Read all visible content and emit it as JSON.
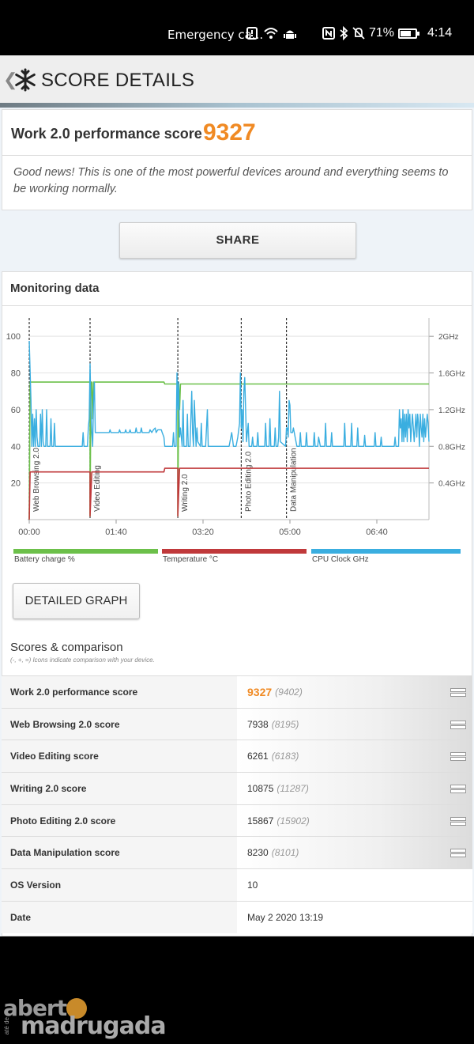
{
  "status_bar": {
    "carrier": "Emergency ca...",
    "battery_percent": "71%",
    "battery_level": 0.71,
    "time": "4:14"
  },
  "app_bar": {
    "title": "SCORE DETAILS"
  },
  "score_card": {
    "label": "Work 2.0 performance score",
    "score": "9327",
    "message": "Good news! This is one of the most powerful devices around and everything seems to be working normally."
  },
  "share_button": "SHARE",
  "monitoring": {
    "title": "Monitoring data"
  },
  "chart_data": {
    "type": "line",
    "title": "",
    "xlabel": "",
    "x_ticks": [
      "00:00",
      "01:40",
      "03:20",
      "05:00",
      "06:40"
    ],
    "y_left_ticks": [
      "100",
      "80",
      "60",
      "40",
      "20"
    ],
    "y_left_range": [
      0,
      110
    ],
    "y_right_ticks": [
      "2GHz",
      "1.6GHz",
      "1.2GHz",
      "0.8GHz",
      "0.4GHz"
    ],
    "y_right_range_ghz": [
      0,
      2.2
    ],
    "x_range_seconds": [
      0,
      460
    ],
    "grid": true,
    "legend_position": "bottom",
    "sections": [
      {
        "label": "Web Browsing 2.0",
        "t": 0
      },
      {
        "label": "Video Editing",
        "t": 70
      },
      {
        "label": "Writing 2.0",
        "t": 171
      },
      {
        "label": "Photo Editing 2.0",
        "t": 244
      },
      {
        "label": "Data Manipulation",
        "t": 296
      }
    ],
    "series": [
      {
        "name": "Battery charge %",
        "color": "#6cc04a",
        "points": [
          [
            0,
            0
          ],
          [
            1,
            75
          ],
          [
            70,
            75
          ],
          [
            70,
            2
          ],
          [
            71,
            75
          ],
          [
            72,
            75
          ],
          [
            73,
            55
          ],
          [
            74,
            75
          ],
          [
            155,
            75
          ],
          [
            156,
            74
          ],
          [
            171,
            74
          ],
          [
            171,
            2
          ],
          [
            172,
            74
          ],
          [
            173,
            60
          ],
          [
            174,
            74
          ],
          [
            460,
            74
          ]
        ]
      },
      {
        "name": "Temperature °C",
        "color": "#c0393b",
        "points": [
          [
            0,
            0
          ],
          [
            1,
            26
          ],
          [
            70,
            26
          ],
          [
            70,
            2
          ],
          [
            72,
            26
          ],
          [
            155,
            26
          ],
          [
            156,
            28
          ],
          [
            171,
            28
          ],
          [
            171,
            2
          ],
          [
            173,
            28
          ],
          [
            460,
            28
          ]
        ]
      },
      {
        "name": "CPU Clock GHz",
        "color": "#3aaee0",
        "points": [
          [
            0,
            1.95
          ],
          [
            2,
            1.3
          ],
          [
            3,
            0.8
          ],
          [
            4,
            1.15
          ],
          [
            5,
            0.8
          ],
          [
            6,
            1.1
          ],
          [
            7,
            0.8
          ],
          [
            8,
            1.2
          ],
          [
            9,
            0.9
          ],
          [
            10,
            0.8
          ],
          [
            12,
            0.8
          ],
          [
            13,
            1.15
          ],
          [
            14,
            0.8
          ],
          [
            15,
            1.2
          ],
          [
            16,
            0.85
          ],
          [
            17,
            0.8
          ],
          [
            19,
            0.8
          ],
          [
            20,
            1.2
          ],
          [
            21,
            0.8
          ],
          [
            24,
            0.8
          ],
          [
            25,
            1.1
          ],
          [
            26,
            0.8
          ],
          [
            28,
            0.8
          ],
          [
            29,
            1.05
          ],
          [
            30,
            0.8
          ],
          [
            50,
            0.8
          ],
          [
            52,
            0.8
          ],
          [
            61,
            0.8
          ],
          [
            62,
            0.95
          ],
          [
            63,
            0.8
          ],
          [
            64,
            0.8
          ],
          [
            67,
            0.8
          ],
          [
            68,
            1.0
          ],
          [
            69,
            1.1
          ],
          [
            70,
            1.7
          ],
          [
            71,
            1.2
          ],
          [
            72,
            0.95
          ],
          [
            73,
            0.8
          ],
          [
            74,
            1.3
          ],
          [
            75,
            1.5
          ],
          [
            76,
            0.95
          ],
          [
            78,
            0.95
          ],
          [
            82,
            0.95
          ],
          [
            83,
            0.95
          ],
          [
            92,
            0.95
          ],
          [
            93,
            0.98
          ],
          [
            94,
            0.95
          ],
          [
            103,
            0.95
          ],
          [
            104,
            0.98
          ],
          [
            105,
            0.95
          ],
          [
            110,
            0.95
          ],
          [
            111,
            0.98
          ],
          [
            112,
            0.95
          ],
          [
            115,
            0.95
          ],
          [
            116,
            0.98
          ],
          [
            117,
            0.95
          ],
          [
            122,
            0.95
          ],
          [
            123,
            1.0
          ],
          [
            124,
            0.95
          ],
          [
            128,
            0.95
          ],
          [
            129,
            1.0
          ],
          [
            130,
            0.95
          ],
          [
            138,
            0.95
          ],
          [
            139,
            0.98
          ],
          [
            141,
            0.95
          ],
          [
            143,
            0.98
          ],
          [
            145,
            1.0
          ],
          [
            146,
            0.95
          ],
          [
            148,
            0.98
          ],
          [
            152,
            0.98
          ],
          [
            153,
            0.95
          ],
          [
            155,
            0.9
          ],
          [
            156,
            0.8
          ],
          [
            165,
            0.8
          ],
          [
            166,
            0.95
          ],
          [
            167,
            0.8
          ],
          [
            169,
            0.8
          ],
          [
            170,
            1.6
          ],
          [
            171,
            1.2
          ],
          [
            172,
            1.5
          ],
          [
            173,
            0.9
          ],
          [
            174,
            1.0
          ],
          [
            176,
            0.8
          ],
          [
            177,
            1.3
          ],
          [
            178,
            0.8
          ],
          [
            181,
            0.8
          ],
          [
            182,
            1.15
          ],
          [
            183,
            0.8
          ],
          [
            185,
            0.8
          ],
          [
            186,
            1.1
          ],
          [
            187,
            1.4
          ],
          [
            188,
            0.95
          ],
          [
            189,
            0.8
          ],
          [
            190,
            1.3
          ],
          [
            191,
            1.05
          ],
          [
            192,
            0.8
          ],
          [
            193,
            1.0
          ],
          [
            194,
            0.85
          ],
          [
            197,
            0.8
          ],
          [
            198,
            1.05
          ],
          [
            199,
            0.8
          ],
          [
            203,
            0.8
          ],
          [
            204,
            1.0
          ],
          [
            205,
            1.2
          ],
          [
            206,
            0.8
          ],
          [
            220,
            0.8
          ],
          [
            221,
            0.8
          ],
          [
            230,
            0.8
          ],
          [
            233,
            0.95
          ],
          [
            235,
            0.8
          ],
          [
            238,
            0.8
          ],
          [
            240,
            0.9
          ],
          [
            242,
            1.05
          ],
          [
            243,
            1.6
          ],
          [
            244,
            1.0
          ],
          [
            245,
            1.2
          ],
          [
            246,
            0.85
          ],
          [
            247,
            1.4
          ],
          [
            248,
            1.55
          ],
          [
            249,
            1.2
          ],
          [
            250,
            0.85
          ],
          [
            252,
            1.05
          ],
          [
            253,
            0.8
          ],
          [
            256,
            0.8
          ],
          [
            257,
            0.9
          ],
          [
            258,
            0.8
          ],
          [
            262,
            0.8
          ],
          [
            263,
            0.95
          ],
          [
            264,
            0.8
          ],
          [
            265,
            0.8
          ],
          [
            268,
            0.8
          ],
          [
            271,
            0.8
          ],
          [
            272,
            1.05
          ],
          [
            273,
            0.8
          ],
          [
            276,
            0.8
          ],
          [
            277,
            1.1
          ],
          [
            278,
            0.8
          ],
          [
            282,
            0.8
          ],
          [
            283,
            1.0
          ],
          [
            284,
            0.8
          ],
          [
            286,
            0.8
          ],
          [
            287,
            0.9
          ],
          [
            288,
            1.4
          ],
          [
            289,
            0.85
          ],
          [
            295,
            0.8
          ],
          [
            296,
            1.0
          ],
          [
            297,
            1.0
          ],
          [
            298,
            0.9
          ],
          [
            299,
            1.3
          ],
          [
            300,
            1.25
          ],
          [
            301,
            0.95
          ],
          [
            303,
            0.95
          ],
          [
            304,
            1.0
          ],
          [
            306,
            0.9
          ],
          [
            308,
            0.8
          ],
          [
            311,
            0.8
          ],
          [
            312,
            0.95
          ],
          [
            313,
            0.8
          ],
          [
            318,
            0.8
          ],
          [
            319,
            0.95
          ],
          [
            320,
            0.8
          ],
          [
            327,
            0.8
          ],
          [
            328,
            0.95
          ],
          [
            329,
            0.8
          ],
          [
            332,
            0.8
          ],
          [
            333,
            0.9
          ],
          [
            335,
            0.8
          ],
          [
            340,
            0.8
          ],
          [
            341,
            1.05
          ],
          [
            342,
            0.8
          ],
          [
            347,
            0.8
          ],
          [
            348,
            0.95
          ],
          [
            349,
            0.8
          ],
          [
            356,
            0.8
          ],
          [
            357,
            0.8
          ],
          [
            362,
            0.8
          ],
          [
            363,
            1.05
          ],
          [
            364,
            0.8
          ],
          [
            370,
            0.8
          ],
          [
            371,
            1.05
          ],
          [
            372,
            0.8
          ],
          [
            377,
            0.8
          ],
          [
            378,
            1.0
          ],
          [
            379,
            0.8
          ],
          [
            385,
            0.8
          ],
          [
            386,
            0.92
          ],
          [
            387,
            0.8
          ],
          [
            397,
            0.8
          ],
          [
            398,
            0.95
          ],
          [
            399,
            0.8
          ],
          [
            404,
            0.8
          ],
          [
            405,
            0.9
          ],
          [
            406,
            0.8
          ],
          [
            420,
            0.8
          ],
          [
            421,
            0.9
          ],
          [
            422,
            0.8
          ],
          [
            425,
            0.8
          ],
          [
            426,
            1.2
          ],
          [
            427,
            1.0
          ],
          [
            428,
            1.1
          ],
          [
            429,
            0.85
          ],
          [
            430,
            1.2
          ],
          [
            431,
            0.85
          ],
          [
            432,
            1.15
          ],
          [
            433,
            0.9
          ],
          [
            434,
            1.15
          ],
          [
            435,
            0.85
          ],
          [
            436,
            1.2
          ],
          [
            437,
            1.0
          ],
          [
            438,
            1.15
          ],
          [
            439,
            0.85
          ],
          [
            441,
            1.15
          ],
          [
            442,
            1.0
          ],
          [
            443,
            0.85
          ],
          [
            445,
            1.15
          ],
          [
            446,
            0.9
          ],
          [
            447,
            1.15
          ],
          [
            448,
            1.05
          ],
          [
            449,
            0.8
          ],
          [
            450,
            1.15
          ],
          [
            451,
            1.0
          ],
          [
            452,
            0.9
          ],
          [
            453,
            1.15
          ],
          [
            454,
            0.85
          ],
          [
            455,
            1.1
          ],
          [
            456,
            0.9
          ],
          [
            458,
            1.15
          ],
          [
            459,
            1.05
          ],
          [
            460,
            0.85
          ]
        ]
      }
    ]
  },
  "legend": [
    {
      "label": "Battery charge %",
      "color": "#6cc04a"
    },
    {
      "label": "Temperature °C",
      "color": "#c0393b"
    },
    {
      "label": "CPU Clock GHz",
      "color": "#3aaee0"
    }
  ],
  "detailed_graph_button": "DETAILED GRAPH",
  "scores_section": {
    "title": "Scores & comparison",
    "note": "(-, +, =) Icons indicate comparison with your device."
  },
  "scores_table": [
    {
      "label": "Work 2.0 performance score",
      "value": "9327",
      "comparison": "(9402)",
      "highlight": true,
      "icon": "equal-icon"
    },
    {
      "label": "Web Browsing 2.0 score",
      "value": "7938",
      "comparison": "(8195)",
      "highlight": false,
      "icon": "equal-icon"
    },
    {
      "label": "Video Editing score",
      "value": "6261",
      "comparison": "(6183)",
      "highlight": false,
      "icon": "equal-icon"
    },
    {
      "label": "Writing 2.0 score",
      "value": "10875",
      "comparison": "(11287)",
      "highlight": false,
      "icon": "equal-icon"
    },
    {
      "label": "Photo Editing 2.0 score",
      "value": "15867",
      "comparison": "(15902)",
      "highlight": false,
      "icon": "equal-icon"
    },
    {
      "label": "Data Manipulation score",
      "value": "8230",
      "comparison": "(8101)",
      "highlight": false,
      "icon": "equal-icon"
    },
    {
      "label": "OS Version",
      "value": "10",
      "comparison": "",
      "highlight": false,
      "icon": ""
    },
    {
      "label": "Date",
      "value": "May 2 2020 13:19",
      "comparison": "",
      "highlight": false,
      "icon": ""
    }
  ],
  "watermark": {
    "top": "abert",
    "bottom": "madrugada",
    "side": "até de"
  }
}
